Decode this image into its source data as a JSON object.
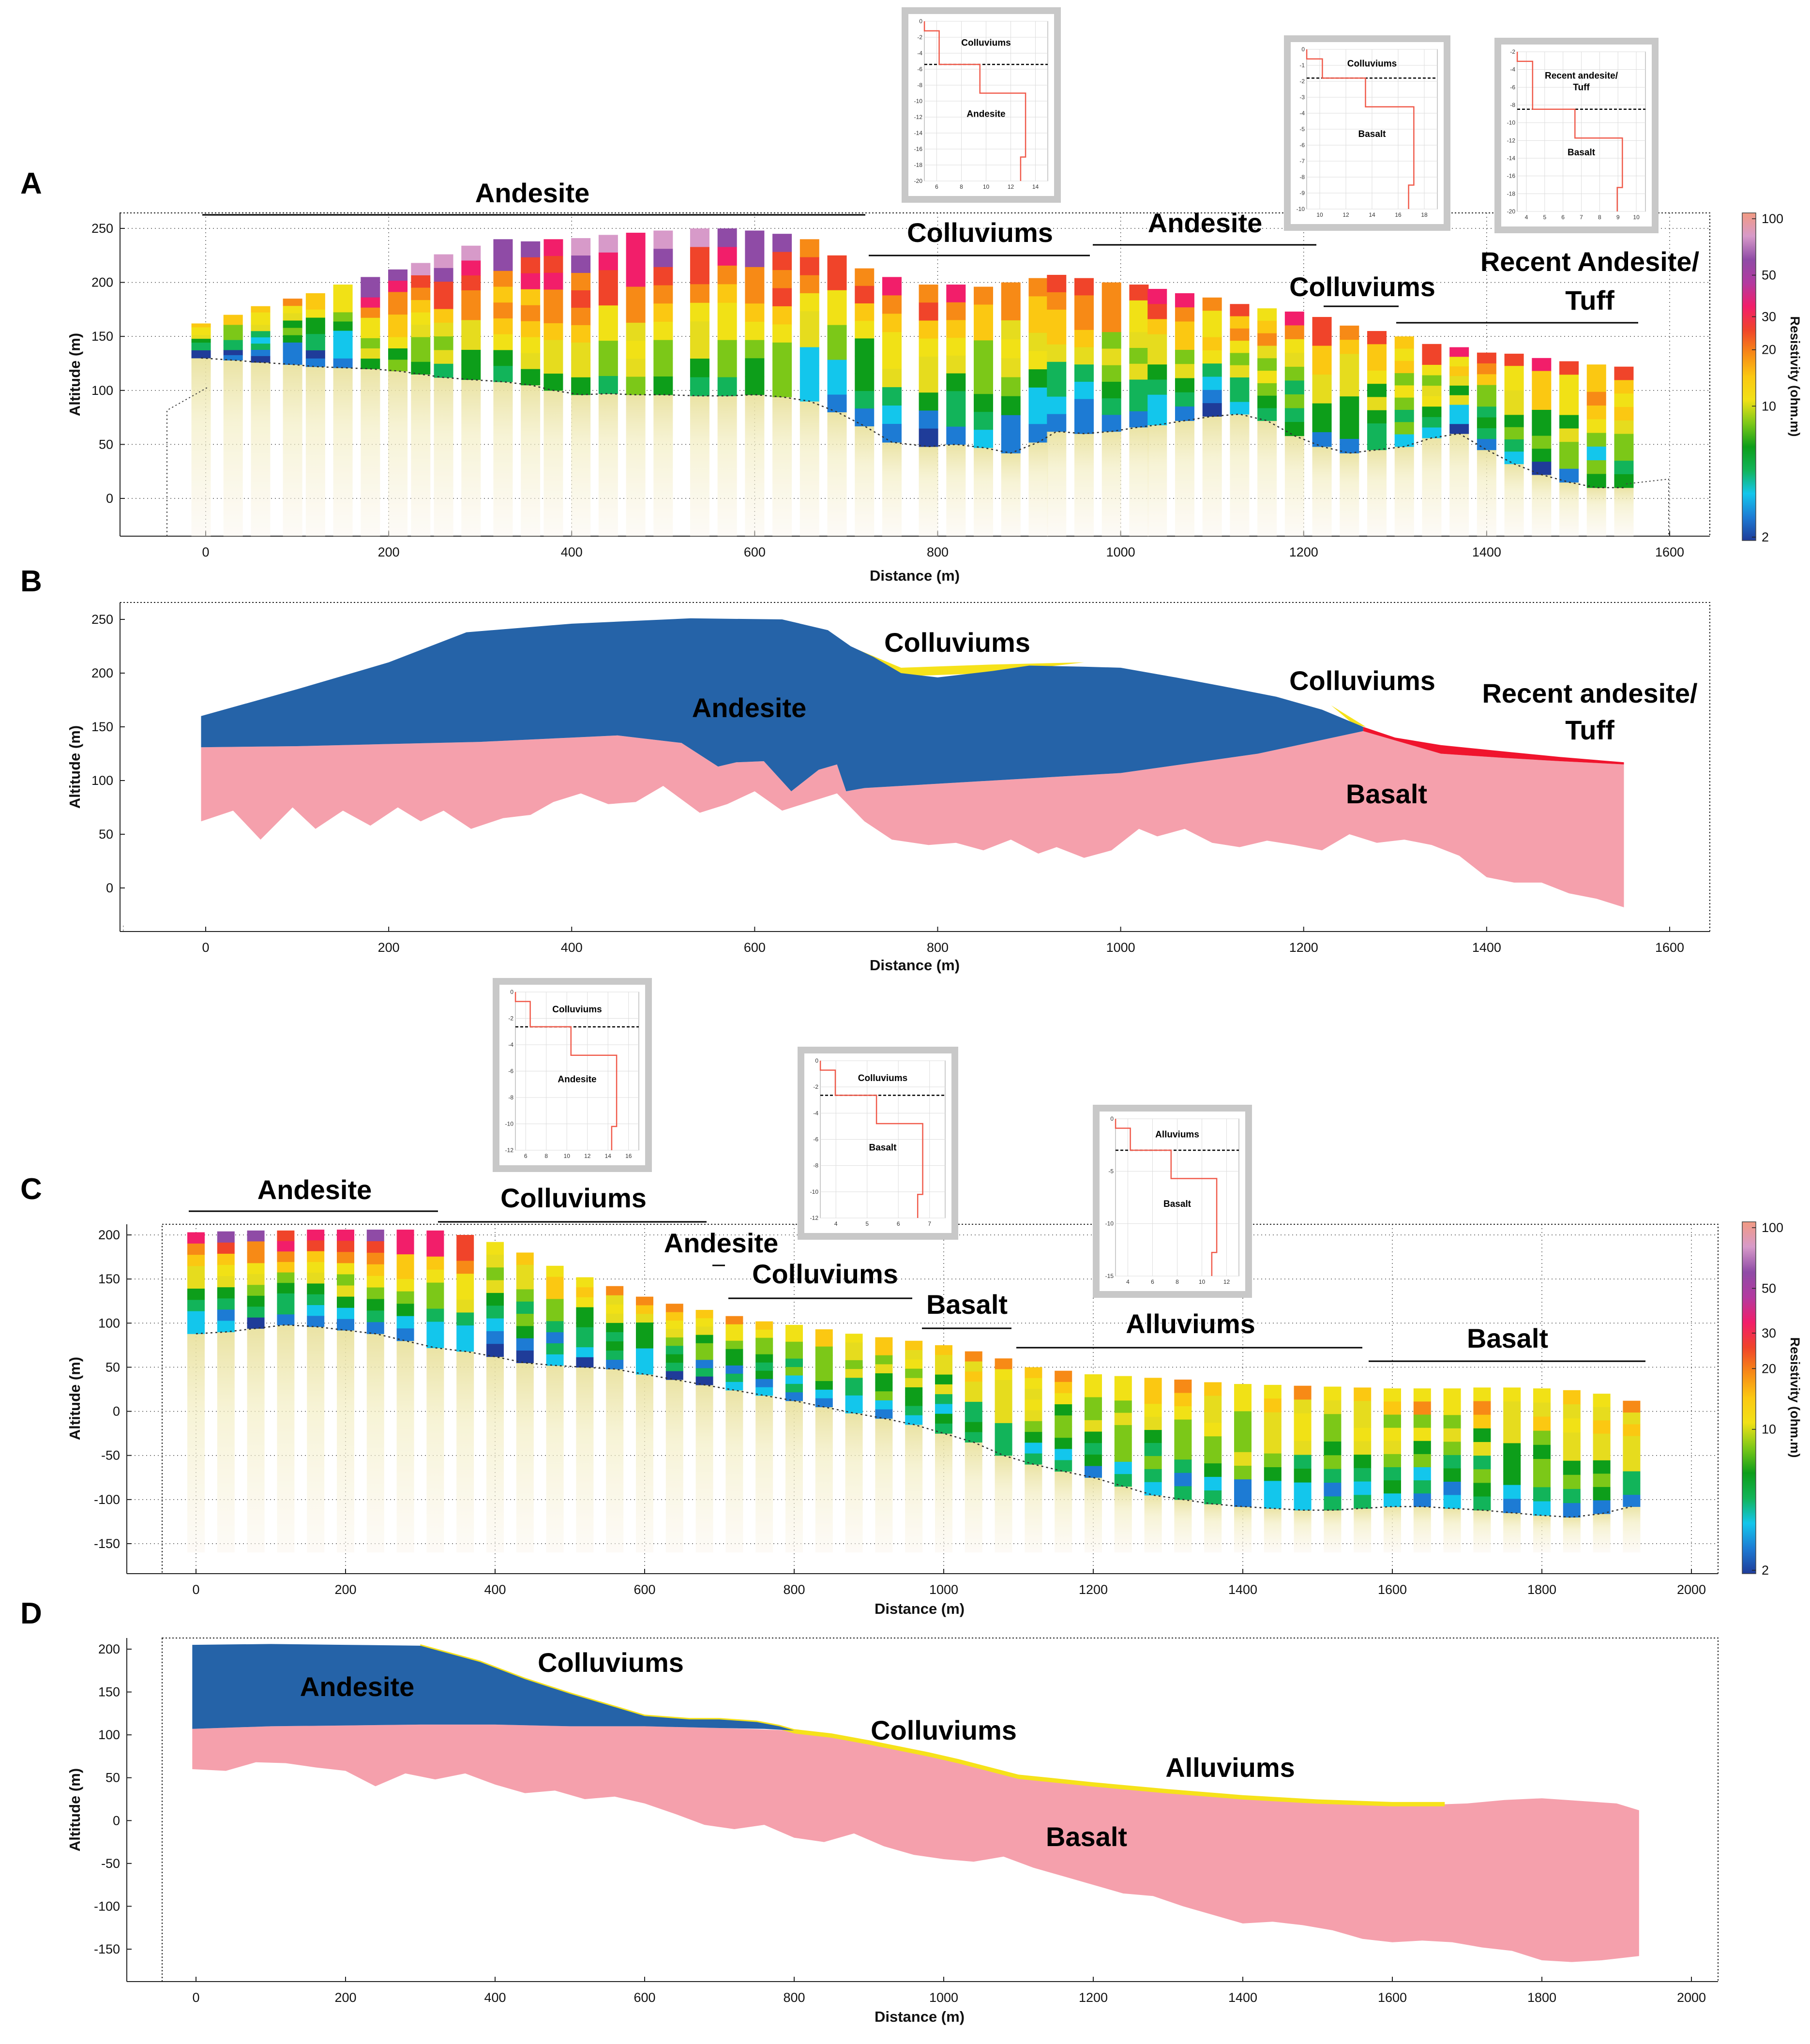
{
  "colors": {
    "andesite": "#2563a8",
    "basalt": "#f5a0ac",
    "colluviums": "#f6e21a",
    "recent_andesite": "#f0142d",
    "colorbar": [
      "#1f3c99",
      "#1d7bd4",
      "#13c6ec",
      "#12b45a",
      "#0d9e1a",
      "#7cc818",
      "#f1e116",
      "#fbc812",
      "#f78a16",
      "#f0442a",
      "#f21e6a",
      "#b33aa0",
      "#8f4ba6",
      "#d79ac9",
      "#f29a82"
    ]
  },
  "chart_data": [
    {
      "panel": "A",
      "type": "heatmap",
      "title": "",
      "xlabel": "Distance (m)",
      "ylabel": "Altitude (m)",
      "xlim": [
        -90,
        1640
      ],
      "ylim": [
        -40,
        265
      ],
      "xticks": [
        "0",
        "200",
        "400",
        "600",
        "800",
        "1000",
        "1200",
        "1400",
        "1600"
      ],
      "yticks": [
        "250",
        "200",
        "150",
        "100",
        "50",
        "0"
      ],
      "colorbar": {
        "label": "Resistivity (ohm.m)",
        "ticks": [
          "100",
          "50",
          "30",
          "20",
          "10",
          "2"
        ]
      },
      "soundings": {
        "x": [
          -5,
          30,
          60,
          95,
          120,
          150,
          180,
          210,
          235,
          260,
          290,
          325,
          355,
          380,
          410,
          440,
          470,
          500,
          540,
          570,
          600,
          630,
          660,
          690,
          720,
          750,
          790,
          820,
          850,
          880,
          910,
          930,
          960,
          990,
          1020,
          1040,
          1070,
          1100,
          1130,
          1160,
          1190,
          1220,
          1250,
          1280,
          1310,
          1340,
          1370,
          1400,
          1430,
          1460,
          1490,
          1520,
          1550
        ],
        "top": [
          162,
          170,
          178,
          185,
          190,
          198,
          205,
          212,
          218,
          226,
          234,
          240,
          238,
          240,
          241,
          244,
          246,
          248,
          250,
          250,
          248,
          245,
          240,
          225,
          213,
          205,
          198,
          198,
          196,
          200,
          204,
          207,
          204,
          200,
          198,
          194,
          190,
          186,
          180,
          176,
          173,
          168,
          160,
          155,
          150,
          143,
          140,
          135,
          134,
          130,
          127,
          124,
          122
        ],
        "basement": [
          130,
          128,
          126,
          124,
          122,
          121,
          120,
          118,
          115,
          112,
          110,
          108,
          105,
          100,
          96,
          97,
          96,
          96,
          95,
          95,
          96,
          94,
          90,
          80,
          67,
          52,
          48,
          50,
          47,
          42,
          52,
          62,
          60,
          62,
          66,
          68,
          72,
          76,
          78,
          72,
          58,
          48,
          42,
          45,
          48,
          56,
          60,
          45,
          32,
          22,
          15,
          10,
          10
        ]
      },
      "labels": [
        "Andesite",
        "Colluviums",
        "Andesite",
        "Colluviums",
        "Recent Andesite/",
        "Tuff"
      ],
      "insets": [
        {
          "top": "Colluviums",
          "bottom": "Andesite",
          "yticks": [
            "0",
            "-2",
            "-4",
            "-6",
            "-8",
            "-10",
            "-12",
            "-14",
            "-16",
            "-18",
            "-20"
          ],
          "xticks": [
            "6",
            "8",
            "10",
            "12",
            "14"
          ]
        },
        {
          "top": "Colluviums",
          "bottom": "Basalt",
          "yticks": [
            "0",
            "-1",
            "-2",
            "-3",
            "-4",
            "-5",
            "-6",
            "-7",
            "-8",
            "-9",
            "-10"
          ],
          "xticks": [
            "10",
            "12",
            "14",
            "16",
            "18"
          ]
        },
        {
          "top": "Recent andesite/",
          "top2": "Tuff",
          "bottom": "Basalt",
          "yticks": [
            "-2",
            "-4",
            "-6",
            "-8",
            "-10",
            "-12",
            "-14",
            "-16",
            "-18",
            "-20"
          ],
          "xticks": [
            "4",
            "5",
            "6",
            "7",
            "8",
            "9",
            "10"
          ]
        }
      ]
    },
    {
      "panel": "B",
      "type": "area",
      "xlabel": "Distance (m)",
      "ylabel": "Altitude (m)",
      "xlim": [
        -90,
        1640
      ],
      "ylim": [
        -40,
        265
      ],
      "xticks": [
        "0",
        "200",
        "400",
        "600",
        "800",
        "1000",
        "1200",
        "1400",
        "1600"
      ],
      "yticks": [
        "250",
        "200",
        "150",
        "100",
        "50",
        "0"
      ],
      "labels": [
        "Colluviums",
        "Andesite",
        "Colluviums",
        "Recent andesite/",
        "Tuff",
        "Basalt"
      ],
      "layers": {
        "surface": {
          "x": [
            -5,
            100,
            200,
            285,
            400,
            530,
            630,
            680,
            705,
            730,
            760,
            800,
            860,
            900,
            960,
            1000,
            1060,
            1110,
            1170,
            1220,
            1265,
            1300,
            1350,
            1420,
            1480,
            1550
          ],
          "y": [
            160,
            185,
            210,
            238,
            246,
            251,
            250,
            240,
            225,
            215,
            200,
            196,
            202,
            207,
            206,
            205,
            196,
            188,
            178,
            166,
            150,
            140,
            133,
            127,
            122,
            117
          ]
        },
        "andesite_base": {
          "x": [
            -5,
            100,
            200,
            300,
            400,
            450,
            520,
            560,
            580,
            610,
            640,
            670,
            690,
            700,
            720,
            1000,
            1150,
            1265
          ],
          "y": [
            131,
            132,
            134,
            136,
            140,
            142,
            135,
            113,
            117,
            118,
            90,
            110,
            115,
            90,
            93,
            107,
            125,
            146
          ]
        },
        "recent_base": {
          "x": [
            1265,
            1350,
            1420,
            1480,
            1550
          ],
          "y": [
            146,
            125,
            121,
            118,
            115
          ]
        },
        "basalt_bottom": {
          "x": [
            -5,
            30,
            60,
            95,
            120,
            150,
            180,
            210,
            235,
            260,
            290,
            325,
            355,
            380,
            410,
            440,
            470,
            500,
            540,
            570,
            600,
            630,
            660,
            690,
            720,
            750,
            790,
            820,
            850,
            880,
            910,
            930,
            960,
            990,
            1020,
            1040,
            1070,
            1100,
            1130,
            1160,
            1190,
            1220,
            1250,
            1280,
            1310,
            1340,
            1370,
            1400,
            1430,
            1460,
            1490,
            1520,
            1550
          ],
          "y": [
            62,
            72,
            45,
            75,
            55,
            72,
            58,
            75,
            62,
            72,
            55,
            65,
            68,
            80,
            88,
            78,
            80,
            95,
            70,
            78,
            90,
            72,
            80,
            88,
            62,
            45,
            40,
            42,
            35,
            45,
            32,
            38,
            28,
            35,
            55,
            48,
            55,
            42,
            38,
            44,
            40,
            35,
            50,
            42,
            45,
            40,
            30,
            10,
            5,
            5,
            -5,
            -10,
            -18
          ]
        }
      }
    },
    {
      "panel": "C",
      "type": "heatmap",
      "xlabel": "Distance (m)",
      "ylabel": "Altitude (m)",
      "xlim": [
        -50,
        2010
      ],
      "ylim": [
        -185,
        212
      ],
      "xticks": [
        "0",
        "200",
        "400",
        "600",
        "800",
        "1000",
        "1200",
        "1400",
        "1600",
        "1800",
        "2000"
      ],
      "yticks": [
        "200",
        "150",
        "100",
        "50",
        "0",
        "-50",
        "-100",
        "-150"
      ],
      "colorbar": {
        "label": "Resistivity (ohm.m)",
        "ticks": [
          "100",
          "50",
          "30",
          "20",
          "10",
          "2"
        ]
      },
      "soundings": {
        "x": [
          0,
          40,
          80,
          120,
          160,
          200,
          240,
          280,
          320,
          360,
          400,
          440,
          480,
          520,
          560,
          600,
          640,
          680,
          720,
          760,
          800,
          840,
          880,
          920,
          960,
          1000,
          1040,
          1080,
          1120,
          1160,
          1200,
          1240,
          1280,
          1320,
          1360,
          1400,
          1440,
          1480,
          1520,
          1560,
          1600,
          1640,
          1680,
          1720,
          1760,
          1800,
          1840,
          1880,
          1920
        ],
        "top": [
          203,
          204,
          205,
          205,
          206,
          206,
          206,
          206,
          205,
          200,
          192,
          180,
          165,
          152,
          142,
          130,
          122,
          115,
          108,
          102,
          98,
          93,
          88,
          84,
          80,
          75,
          68,
          60,
          50,
          46,
          42,
          40,
          38,
          36,
          33,
          31,
          30,
          29,
          28,
          27,
          26,
          26,
          26,
          27,
          27,
          26,
          24,
          20,
          12
        ],
        "basement": [
          88,
          90,
          94,
          98,
          96,
          92,
          88,
          80,
          72,
          68,
          62,
          55,
          52,
          50,
          48,
          42,
          36,
          30,
          24,
          18,
          12,
          5,
          -2,
          -8,
          -15,
          -25,
          -35,
          -50,
          -60,
          -68,
          -75,
          -85,
          -95,
          -100,
          -105,
          -108,
          -110,
          -112,
          -112,
          -110,
          -108,
          -108,
          -110,
          -112,
          -115,
          -118,
          -120,
          -116,
          -108
        ]
      },
      "labels": [
        "Andesite",
        "Colluviums",
        "Andesite",
        "Colluviums",
        "Basalt",
        "Alluviums",
        "Basalt"
      ],
      "insets": [
        {
          "top": "Colluviums",
          "bottom": "Andesite",
          "yticks": [
            "0",
            "-2",
            "-4",
            "-6",
            "-8",
            "-10",
            "-12"
          ],
          "xticks": [
            "6",
            "8",
            "10",
            "12",
            "14",
            "16"
          ]
        },
        {
          "top": "Colluviums",
          "bottom": "Basalt",
          "yticks": [
            "0",
            "-2",
            "-4",
            "-6",
            "-8",
            "-10",
            "-12"
          ],
          "xticks": [
            "4",
            "5",
            "6",
            "7"
          ]
        },
        {
          "top": "Alluviums",
          "bottom": "Basalt",
          "yticks": [
            "0",
            "-5",
            "-10",
            "-15"
          ],
          "xticks": [
            "4",
            "6",
            "8",
            "10",
            "12"
          ]
        }
      ]
    },
    {
      "panel": "D",
      "type": "area",
      "xlabel": "Distance (m)",
      "ylabel": "Altitude (m)",
      "xlim": [
        -50,
        2010
      ],
      "ylim": [
        -185,
        212
      ],
      "xticks": [
        "0",
        "200",
        "400",
        "600",
        "800",
        "1000",
        "1200",
        "1400",
        "1600",
        "1800",
        "2000"
      ],
      "yticks": [
        "200",
        "150",
        "100",
        "50",
        "0",
        "-50",
        "-100",
        "-150"
      ],
      "labels": [
        "Andesite",
        "Colluviums",
        "Colluviums",
        "Alluviums",
        "Basalt"
      ],
      "layers": {
        "surface": {
          "x": [
            -5,
            100,
            200,
            300,
            380,
            440,
            500,
            550,
            600,
            660,
            700,
            750,
            780,
            800,
            850,
            900,
            980,
            1020,
            1100,
            1200,
            1300,
            1400,
            1500,
            1600,
            1670
          ],
          "y": [
            205,
            206,
            205,
            204,
            185,
            165,
            148,
            135,
            122,
            118,
            118,
            115,
            110,
            105,
            100,
            92,
            78,
            70,
            52,
            43,
            35,
            28,
            23,
            20,
            20
          ]
        },
        "andesite_base": {
          "x": [
            -5,
            100,
            200,
            300,
            400,
            500,
            600,
            700,
            760,
            800
          ],
          "y": [
            107,
            110,
            111,
            112,
            112,
            110,
            110,
            108,
            107,
            105
          ]
        },
        "basalt_top": {
          "x": [
            -5,
            100,
            200,
            300,
            400,
            500,
            600,
            700,
            800,
            850,
            900,
            980,
            1020,
            1100,
            1200,
            1300,
            1400,
            1500,
            1600,
            1700,
            1750,
            1800,
            1900,
            1930
          ],
          "y": [
            107,
            110,
            111,
            112,
            112,
            110,
            110,
            108,
            105,
            100,
            92,
            78,
            70,
            50,
            40,
            32,
            25,
            20,
            17,
            20,
            24,
            26,
            20,
            12
          ]
        },
        "basalt_bottom": {
          "x": [
            -5,
            40,
            80,
            120,
            160,
            200,
            240,
            280,
            320,
            360,
            400,
            440,
            480,
            520,
            560,
            600,
            640,
            680,
            720,
            760,
            800,
            840,
            880,
            920,
            960,
            1000,
            1040,
            1080,
            1120,
            1160,
            1200,
            1240,
            1280,
            1320,
            1360,
            1400,
            1440,
            1480,
            1520,
            1560,
            1600,
            1640,
            1680,
            1720,
            1760,
            1800,
            1840,
            1880,
            1930
          ],
          "y": [
            60,
            58,
            68,
            67,
            62,
            58,
            40,
            55,
            48,
            55,
            42,
            32,
            35,
            25,
            28,
            20,
            8,
            -5,
            -10,
            -5,
            -20,
            -25,
            -15,
            -30,
            -40,
            -45,
            -48,
            -42,
            -55,
            -65,
            -75,
            -85,
            -88,
            -100,
            -110,
            -120,
            -118,
            -122,
            -128,
            -138,
            -142,
            -140,
            -142,
            -148,
            -152,
            -163,
            -165,
            -163,
            -158
          ]
        }
      }
    }
  ]
}
